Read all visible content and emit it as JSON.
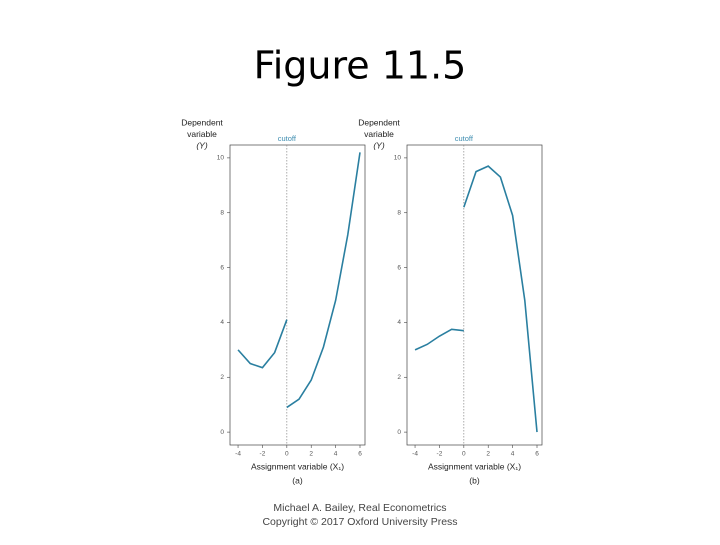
{
  "slide": {
    "title": "Figure 11.5",
    "footer": [
      "Michael A. Bailey, Real Econometrics",
      "Copyright © 2017 Oxford University Press"
    ]
  },
  "chart_data": [
    {
      "type": "line",
      "ylabel": [
        "Dependent",
        "variable",
        "(Y)"
      ],
      "xlabel": "Assignment variable (X₁)",
      "panel": "(a)",
      "cutoff": {
        "label": "cutoff",
        "x": 0
      },
      "x": [
        -4,
        -3,
        -2,
        -1,
        0,
        null,
        0,
        1,
        2,
        3,
        4,
        5,
        6
      ],
      "series": [
        {
          "color": "#2a7fa0",
          "values": [
            3.0,
            2.5,
            2.35,
            2.9,
            4.1,
            null,
            0.9,
            1.2,
            1.9,
            3.1,
            4.8,
            7.2,
            10.2
          ]
        }
      ],
      "xlim": [
        -4.66,
        6.41
      ],
      "ylim": [
        -0.47,
        10.47
      ],
      "xticks": [
        -4,
        -2,
        0,
        2,
        4,
        6
      ],
      "yticks": [
        0,
        2,
        4,
        6,
        8,
        10
      ]
    },
    {
      "type": "line",
      "ylabel": [
        "Dependent",
        "variable",
        "(Y)"
      ],
      "xlabel": "Assignment variable (X₁)",
      "panel": "(b)",
      "cutoff": {
        "label": "cutoff",
        "x": 0
      },
      "x": [
        -4,
        -3,
        -2,
        -1,
        0,
        null,
        0,
        1,
        2,
        3,
        4,
        5,
        6
      ],
      "series": [
        {
          "color": "#2a7fa0",
          "values": [
            3.0,
            3.2,
            3.5,
            3.75,
            3.7,
            null,
            8.2,
            9.5,
            9.7,
            9.3,
            7.9,
            4.8,
            0
          ]
        }
      ],
      "xlim": [
        -4.66,
        6.41
      ],
      "ylim": [
        -0.47,
        10.47
      ],
      "xticks": [
        -4,
        -2,
        0,
        2,
        4,
        6
      ],
      "yticks": [
        0,
        2,
        4,
        6,
        8,
        10
      ]
    }
  ]
}
